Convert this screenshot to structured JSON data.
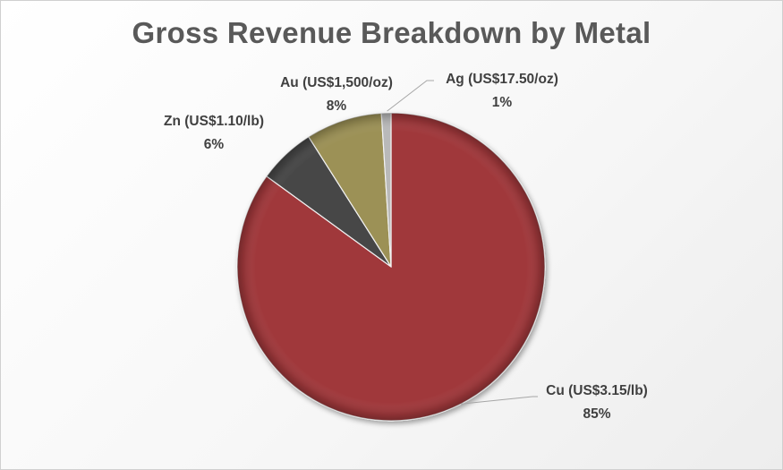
{
  "chart_data": {
    "type": "pie",
    "title": "Gross Revenue Breakdown by Metal",
    "slices": [
      {
        "label": "Cu (US$3.15/lb)",
        "value": 85,
        "pct_text": "85%",
        "color": "#a0373a"
      },
      {
        "label": "Zn (US$1.10/lb)",
        "value": 6,
        "pct_text": "6%",
        "color": "#474747"
      },
      {
        "label": "Au (US$1,500/oz)",
        "value": 8,
        "pct_text": "8%",
        "color": "#9c9156"
      },
      {
        "label": "Ag (US$17.50/oz)",
        "value": 1,
        "pct_text": "1%",
        "color": "#b9b9b9"
      }
    ],
    "start": "12 o'clock",
    "direction": "clockwise",
    "legend": "none",
    "data_labels": "outside, category name and percentage"
  }
}
